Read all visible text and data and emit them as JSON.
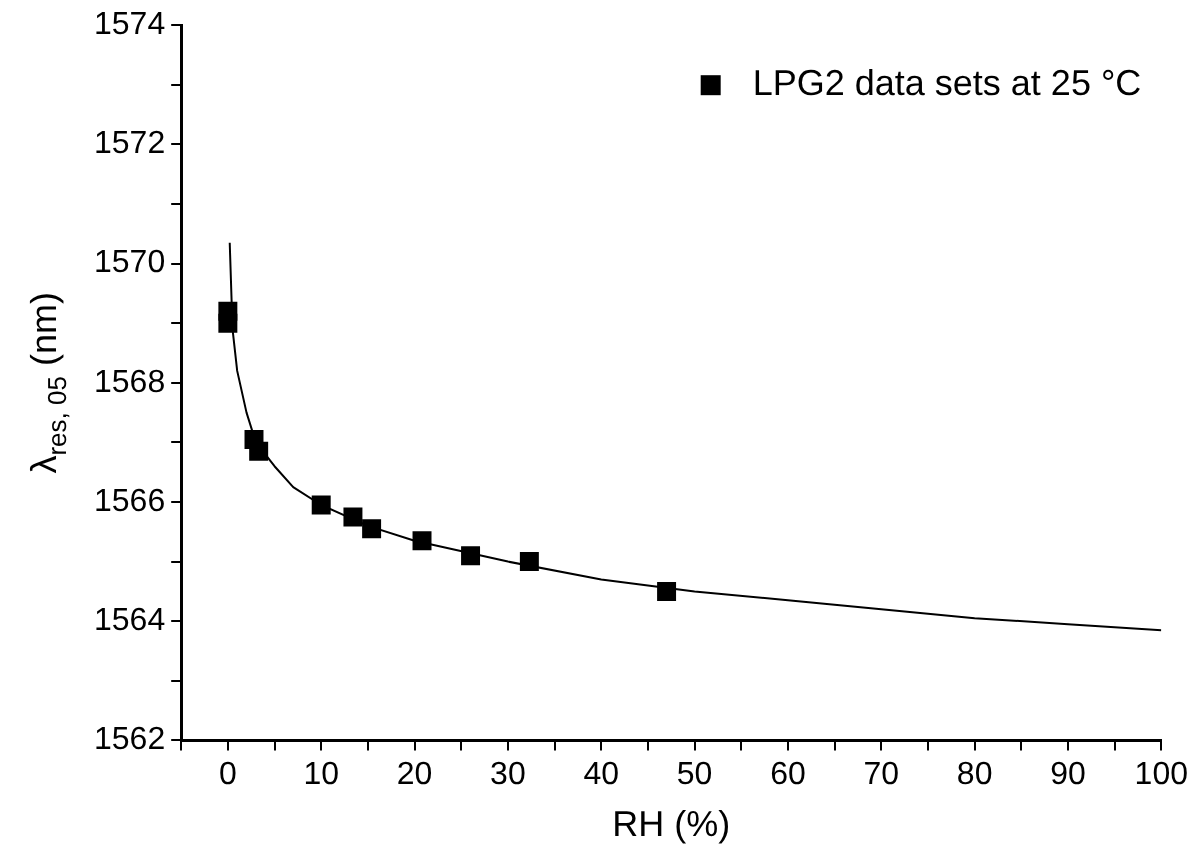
{
  "chart_data": {
    "type": "scatter",
    "xlabel": "RH (%)",
    "ylabel": "λ$_{res, 05}$ (nm)",
    "series": [
      {
        "name": "LPG2 data sets at 25 °C",
        "color": "#000000",
        "marker": "square",
        "x": [
          0,
          0,
          2.8,
          3.3,
          10,
          13.4,
          15.4,
          20.8,
          26,
          32.3,
          47
        ],
        "values": [
          1569.2,
          1569.0,
          1567.05,
          1566.85,
          1565.95,
          1565.75,
          1565.55,
          1565.35,
          1565.1,
          1565.0,
          1564.5
        ]
      },
      {
        "type": "line",
        "color": "#000000",
        "marker": "none",
        "line_style": "solid",
        "x": [
          0.2,
          0.5,
          1,
          2,
          3,
          5,
          7,
          10,
          15,
          20,
          30,
          40,
          50,
          60,
          70,
          80,
          90,
          100
        ],
        "values": [
          1570.35,
          1568.9,
          1568.2,
          1567.5,
          1567.0,
          1566.6,
          1566.25,
          1565.95,
          1565.6,
          1565.35,
          1565.0,
          1564.7,
          1564.5,
          1564.35,
          1564.2,
          1564.05,
          1563.95,
          1563.85
        ]
      }
    ],
    "xlim": [
      -5,
      100
    ],
    "xticks": [
      {
        "value": -5,
        "label": null
      },
      0,
      {
        "value": 5,
        "label": null
      },
      10,
      {
        "value": 15,
        "label": null
      },
      20,
      {
        "value": 25,
        "label": null
      },
      30,
      {
        "value": 35,
        "label": null
      },
      40,
      {
        "value": 45,
        "label": null
      },
      50,
      {
        "value": 55,
        "label": null
      },
      60,
      {
        "value": 65,
        "label": null
      },
      70,
      {
        "value": 75,
        "label": null
      },
      80,
      {
        "value": 85,
        "label": null
      },
      90,
      {
        "value": 95,
        "label": null
      },
      100
    ],
    "ylim": [
      1562,
      1574
    ],
    "yticks": [
      1562,
      {
        "value": 1563,
        "label": null
      },
      1564,
      {
        "value": 1565,
        "label": null
      },
      1566,
      {
        "value": 1567,
        "label": null
      },
      1568,
      {
        "value": 1569,
        "label": null
      },
      1570,
      {
        "value": 1571,
        "label": null
      },
      1572,
      {
        "value": 1573,
        "label": null
      },
      1574
    ],
    "grid": false,
    "legend": "top right"
  }
}
